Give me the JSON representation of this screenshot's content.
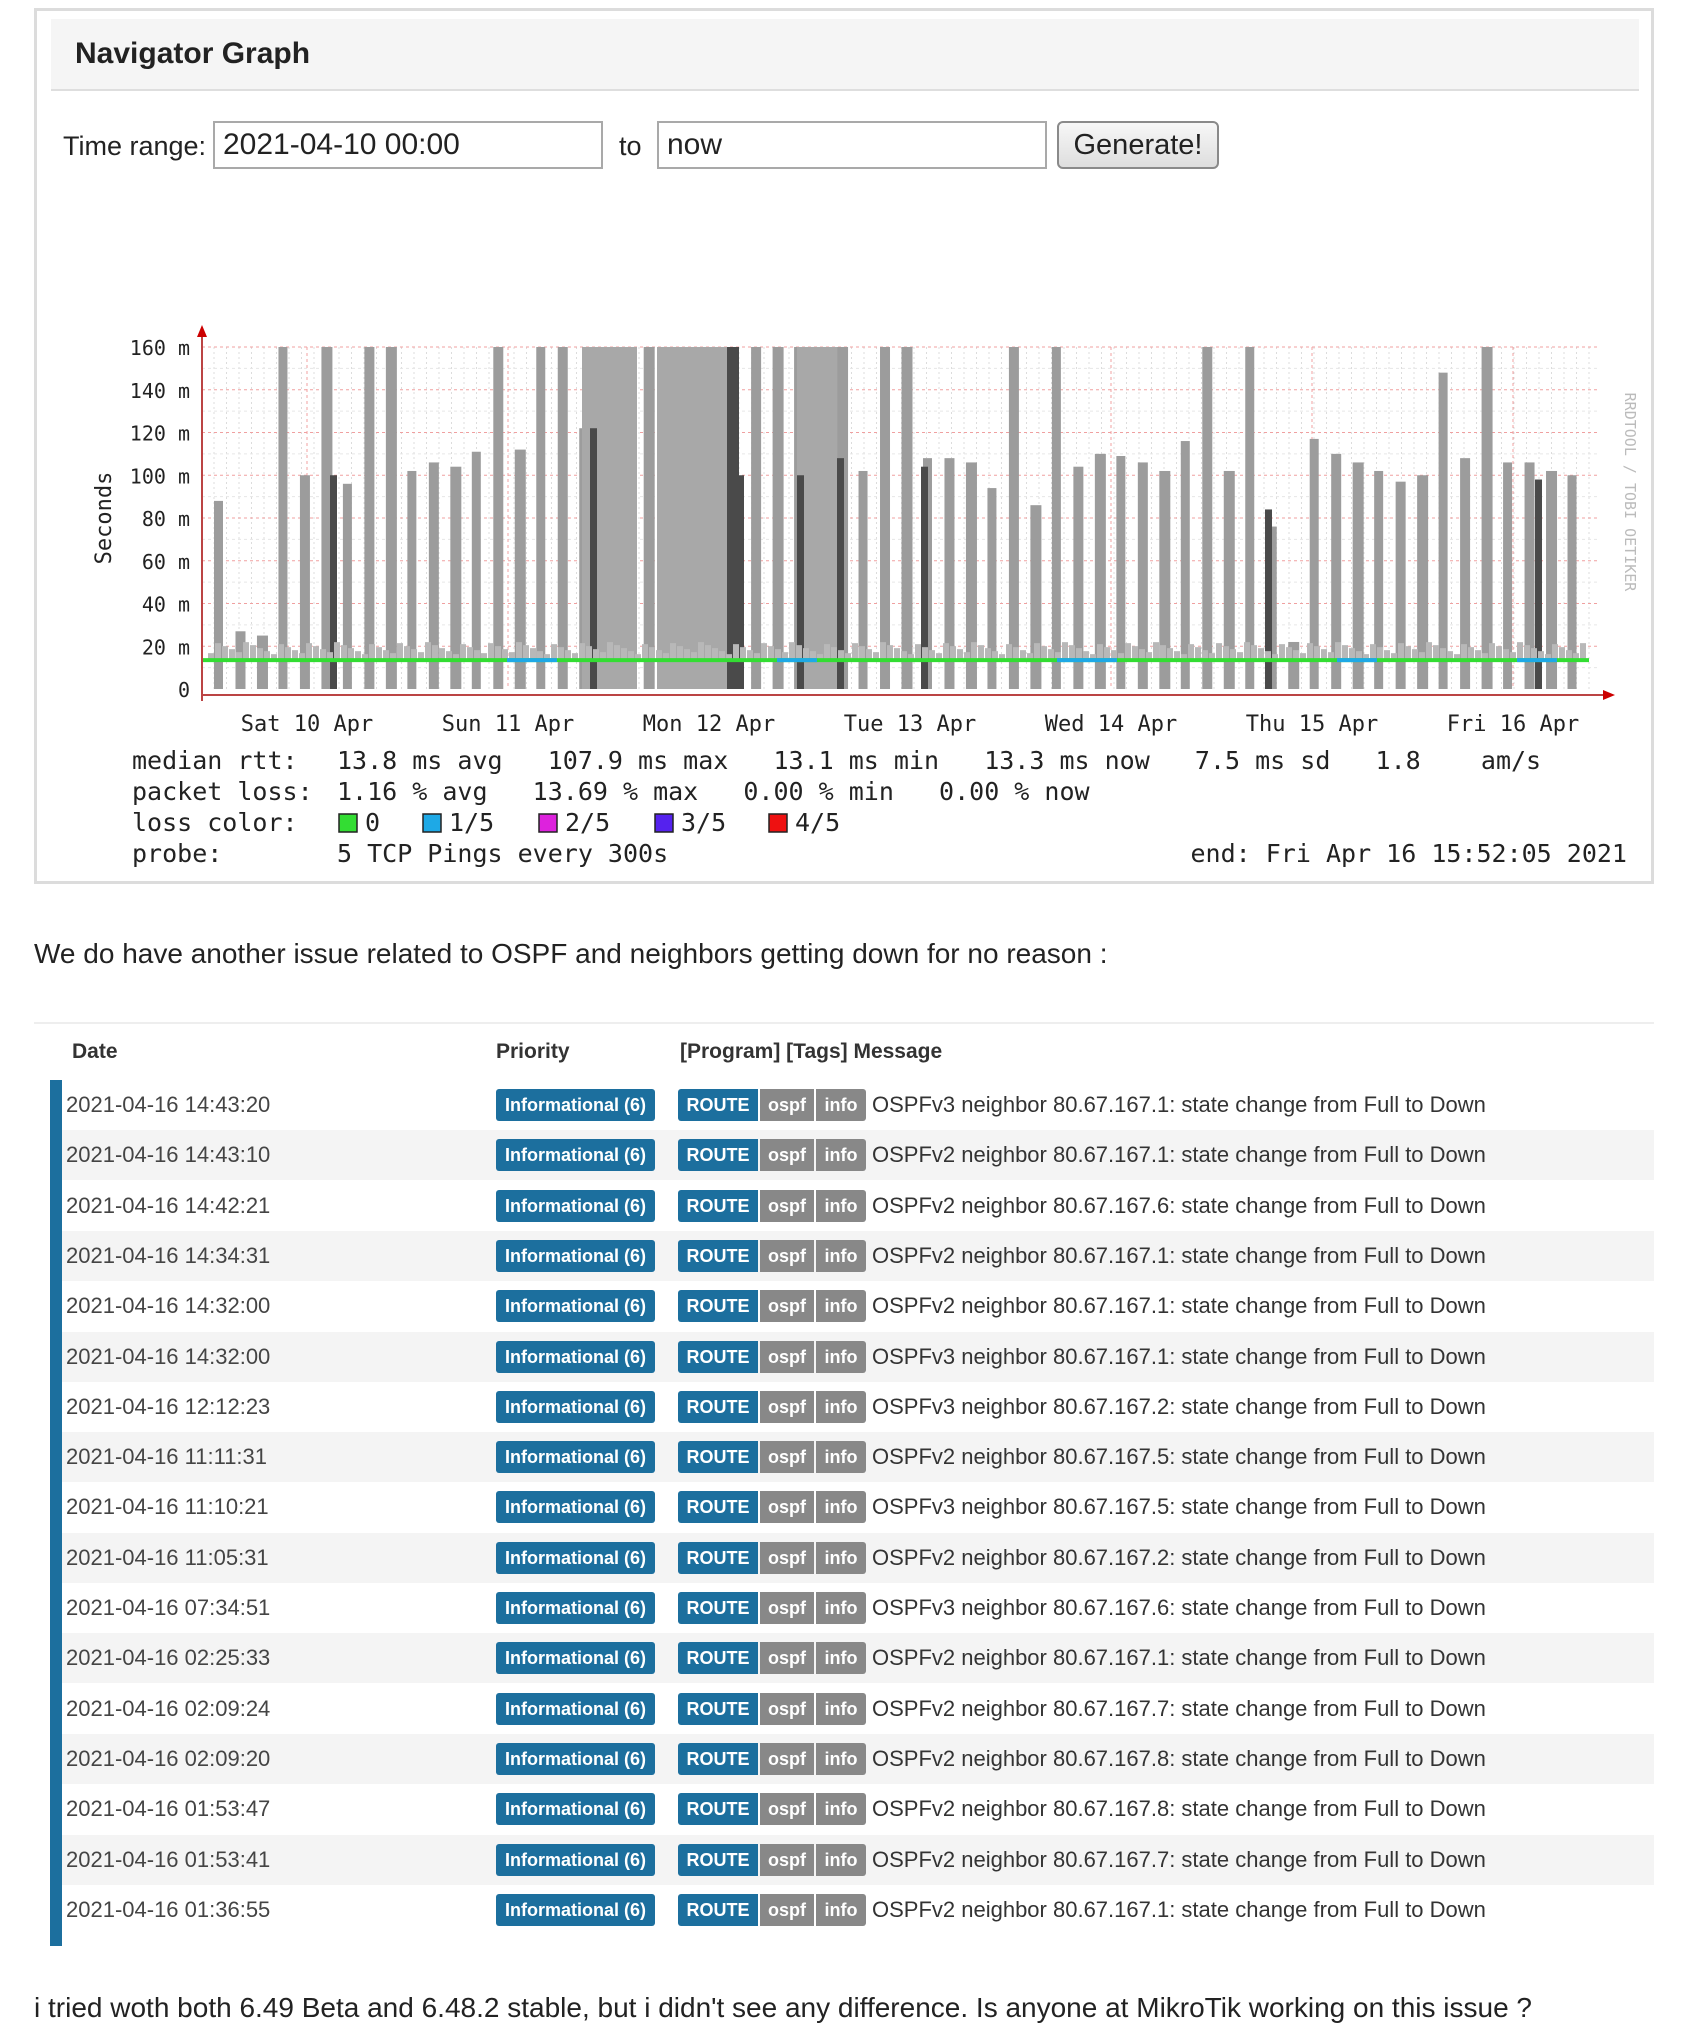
{
  "navigator": {
    "title": "Navigator Graph",
    "time_range_label": "Time range:",
    "from_value": "2021-04-10 00:00",
    "to_label": "to",
    "to_value": "now",
    "generate_label": "Generate!"
  },
  "chart_data": {
    "type": "bar",
    "ylabel": "Seconds",
    "ylim": [
      0,
      160
    ],
    "y_ticks": [
      "0",
      "20 m",
      "40 m",
      "60 m",
      "80 m",
      "100 m",
      "120 m",
      "140 m",
      "160 m"
    ],
    "x_ticks": [
      "Sat 10 Apr",
      "Sun 11 Apr",
      "Mon 12 Apr",
      "Tue 13 Apr",
      "Wed 14 Apr",
      "Thu 15 Apr",
      "Fri 16 Apr"
    ],
    "watermark": "RRDTOOL / TOBI OETIKER",
    "grid": true,
    "spikes_ms": [
      88,
      27,
      25,
      160,
      100,
      160,
      96,
      160,
      160,
      102,
      106,
      104,
      111,
      160,
      112,
      160,
      160,
      122,
      160,
      64,
      160,
      160,
      160,
      112,
      160,
      160,
      160,
      160,
      97,
      160,
      102,
      160,
      160,
      108,
      108,
      106,
      94,
      160,
      86,
      160,
      104,
      110,
      109,
      106,
      102,
      116,
      160,
      102,
      160,
      76,
      22,
      117,
      110,
      106,
      102,
      97,
      100,
      148,
      108,
      160,
      106,
      106,
      102,
      100
    ],
    "dark_spikes_ms": [
      100,
      122,
      160,
      160,
      100,
      100,
      108,
      104,
      84,
      98
    ],
    "median_rtt_ms": 13.5,
    "stats": [
      {
        "label": "median rtt:",
        "text": "13.8 ms avg   107.9 ms max   13.1 ms min   13.3 ms now   7.5 ms sd   1.8    am/s"
      },
      {
        "label": "packet loss:",
        "text": "1.16 % avg   13.69 % max   0.00 % min   0.00 % now"
      }
    ],
    "loss_color_label": "loss color:",
    "loss_legend": [
      {
        "label": "0",
        "color": "#33dd33"
      },
      {
        "label": "1/5",
        "color": "#1ea9e6"
      },
      {
        "label": "2/5",
        "color": "#dd22dd"
      },
      {
        "label": "3/5",
        "color": "#5522ee"
      },
      {
        "label": "4/5",
        "color": "#ee1111"
      }
    ],
    "probe_label": "probe:",
    "probe_value": "5 TCP Pings every 300s",
    "end_text": "end: Fri Apr 16 15:52:05 2021"
  },
  "text1": "We do have another issue related to OSPF and neighbors getting down for no reason :",
  "log": {
    "headers": [
      "Date",
      "Priority",
      "[Program] [Tags] Message"
    ],
    "rows": [
      {
        "date": "2021-04-16 14:43:20",
        "priority": "Informational (6)",
        "program": "ROUTE",
        "tag1": "ospf",
        "tag2": "info",
        "message": "OSPFv3 neighbor 80.67.167.1: state change from Full to Down"
      },
      {
        "date": "2021-04-16 14:43:10",
        "priority": "Informational (6)",
        "program": "ROUTE",
        "tag1": "ospf",
        "tag2": "info",
        "message": "OSPFv2 neighbor 80.67.167.1: state change from Full to Down"
      },
      {
        "date": "2021-04-16 14:42:21",
        "priority": "Informational (6)",
        "program": "ROUTE",
        "tag1": "ospf",
        "tag2": "info",
        "message": "OSPFv2 neighbor 80.67.167.6: state change from Full to Down"
      },
      {
        "date": "2021-04-16 14:34:31",
        "priority": "Informational (6)",
        "program": "ROUTE",
        "tag1": "ospf",
        "tag2": "info",
        "message": "OSPFv2 neighbor 80.67.167.1: state change from Full to Down"
      },
      {
        "date": "2021-04-16 14:32:00",
        "priority": "Informational (6)",
        "program": "ROUTE",
        "tag1": "ospf",
        "tag2": "info",
        "message": "OSPFv2 neighbor 80.67.167.1: state change from Full to Down"
      },
      {
        "date": "2021-04-16 14:32:00",
        "priority": "Informational (6)",
        "program": "ROUTE",
        "tag1": "ospf",
        "tag2": "info",
        "message": "OSPFv3 neighbor 80.67.167.1: state change from Full to Down"
      },
      {
        "date": "2021-04-16 12:12:23",
        "priority": "Informational (6)",
        "program": "ROUTE",
        "tag1": "ospf",
        "tag2": "info",
        "message": "OSPFv3 neighbor 80.67.167.2: state change from Full to Down"
      },
      {
        "date": "2021-04-16 11:11:31",
        "priority": "Informational (6)",
        "program": "ROUTE",
        "tag1": "ospf",
        "tag2": "info",
        "message": "OSPFv2 neighbor 80.67.167.5: state change from Full to Down"
      },
      {
        "date": "2021-04-16 11:10:21",
        "priority": "Informational (6)",
        "program": "ROUTE",
        "tag1": "ospf",
        "tag2": "info",
        "message": "OSPFv3 neighbor 80.67.167.5: state change from Full to Down"
      },
      {
        "date": "2021-04-16 11:05:31",
        "priority": "Informational (6)",
        "program": "ROUTE",
        "tag1": "ospf",
        "tag2": "info",
        "message": "OSPFv2 neighbor 80.67.167.2: state change from Full to Down"
      },
      {
        "date": "2021-04-16 07:34:51",
        "priority": "Informational (6)",
        "program": "ROUTE",
        "tag1": "ospf",
        "tag2": "info",
        "message": "OSPFv3 neighbor 80.67.167.6: state change from Full to Down"
      },
      {
        "date": "2021-04-16 02:25:33",
        "priority": "Informational (6)",
        "program": "ROUTE",
        "tag1": "ospf",
        "tag2": "info",
        "message": "OSPFv2 neighbor 80.67.167.1: state change from Full to Down"
      },
      {
        "date": "2021-04-16 02:09:24",
        "priority": "Informational (6)",
        "program": "ROUTE",
        "tag1": "ospf",
        "tag2": "info",
        "message": "OSPFv2 neighbor 80.67.167.7: state change from Full to Down"
      },
      {
        "date": "2021-04-16 02:09:20",
        "priority": "Informational (6)",
        "program": "ROUTE",
        "tag1": "ospf",
        "tag2": "info",
        "message": "OSPFv2 neighbor 80.67.167.8: state change from Full to Down"
      },
      {
        "date": "2021-04-16 01:53:47",
        "priority": "Informational (6)",
        "program": "ROUTE",
        "tag1": "ospf",
        "tag2": "info",
        "message": "OSPFv2 neighbor 80.67.167.8: state change from Full to Down"
      },
      {
        "date": "2021-04-16 01:53:41",
        "priority": "Informational (6)",
        "program": "ROUTE",
        "tag1": "ospf",
        "tag2": "info",
        "message": "OSPFv2 neighbor 80.67.167.7: state change from Full to Down"
      },
      {
        "date": "2021-04-16 01:36:55",
        "priority": "Informational (6)",
        "program": "ROUTE",
        "tag1": "ospf",
        "tag2": "info",
        "message": "OSPFv2 neighbor 80.67.167.1: state change from Full to Down"
      }
    ]
  },
  "text2": "i tried woth both 6.49 Beta and 6.48.2 stable, but i didn't see any difference. Is anyone at MikroTik working on this issue ?"
}
